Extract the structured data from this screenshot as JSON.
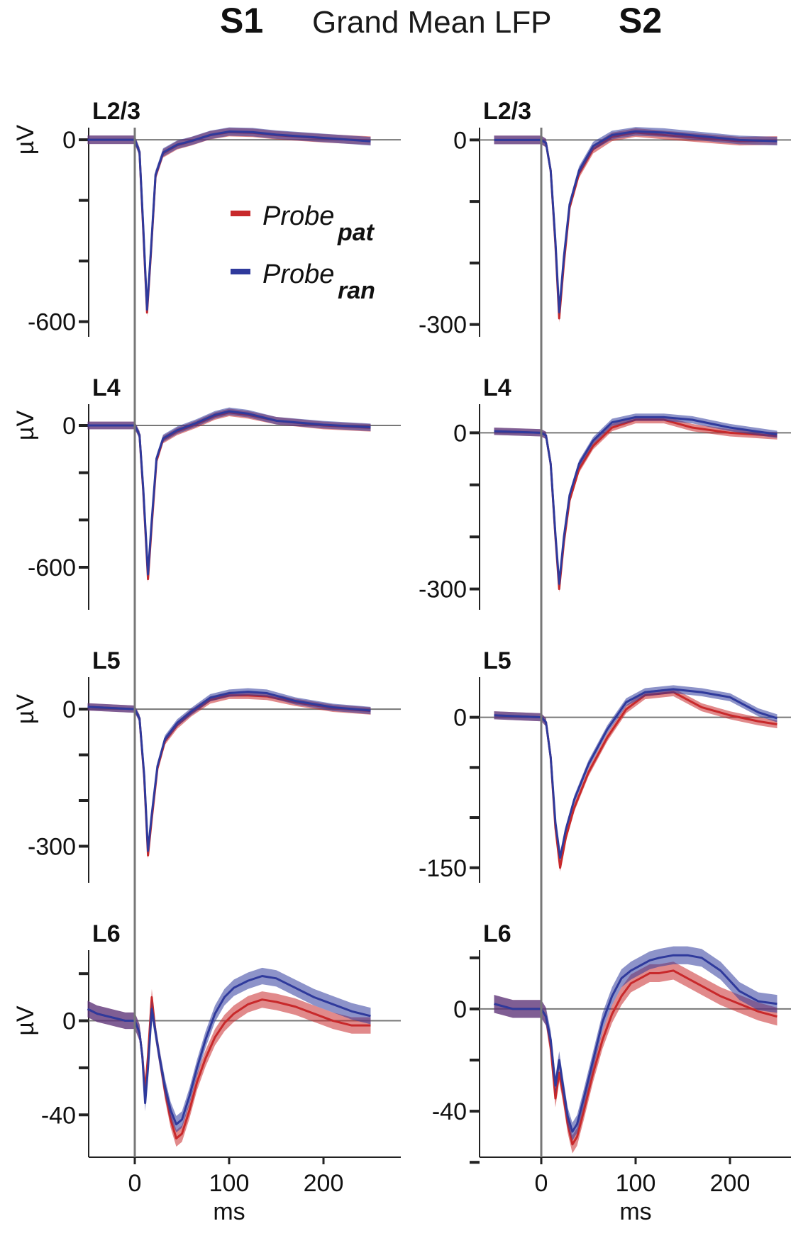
{
  "header": {
    "title": "Grand Mean LFP",
    "col_left": "S1",
    "col_right": "S2"
  },
  "legend": {
    "items": [
      {
        "base": "Probe",
        "sub": "pat",
        "color": "#c8292b"
      },
      {
        "base": "Probe",
        "sub": "ran",
        "color": "#2f3a9c"
      }
    ]
  },
  "colors": {
    "pat": "#c8292b",
    "ran": "#2f3a9c",
    "axis": "#222222",
    "zero": "#777777"
  },
  "chart_data": [
    {
      "type": "line",
      "panel": "S1-L2/3",
      "layer_label": "L2/3",
      "ylabel": "µV",
      "ylim": [
        -650,
        40
      ],
      "yticks": [
        0,
        -200,
        -400,
        -600
      ],
      "ytick_labels": [
        "0",
        "",
        "",
        "-600"
      ],
      "xlim": [
        -65,
        265
      ],
      "series": [
        {
          "name": "Probe pat",
          "band": 14,
          "x": [
            -50,
            0,
            5,
            9,
            13,
            17,
            22,
            30,
            45,
            60,
            80,
            100,
            125,
            150,
            200,
            250
          ],
          "y": [
            0,
            0,
            -40,
            -300,
            -570,
            -380,
            -120,
            -45,
            -18,
            -5,
            15,
            25,
            23,
            15,
            5,
            -3
          ]
        },
        {
          "name": "Probe ran",
          "band": 14,
          "x": [
            -50,
            0,
            5,
            9,
            13,
            17,
            22,
            30,
            45,
            60,
            80,
            100,
            125,
            150,
            200,
            250
          ],
          "y": [
            0,
            0,
            -40,
            -290,
            -560,
            -370,
            -115,
            -42,
            -16,
            -4,
            16,
            27,
            25,
            17,
            6,
            -5
          ]
        }
      ]
    },
    {
      "type": "line",
      "panel": "S2-L2/3",
      "layer_label": "L2/3",
      "ylabel": "",
      "ylim": [
        -320,
        20
      ],
      "yticks": [
        0,
        -100,
        -200,
        -300
      ],
      "ytick_labels": [
        "0",
        "",
        "",
        "-300"
      ],
      "xlim": [
        -65,
        265
      ],
      "series": [
        {
          "name": "Probe pat",
          "band": 7,
          "x": [
            -50,
            0,
            5,
            10,
            15,
            19,
            24,
            30,
            40,
            55,
            75,
            100,
            130,
            170,
            210,
            250
          ],
          "y": [
            0,
            0,
            -5,
            -50,
            -170,
            -290,
            -200,
            -110,
            -55,
            -15,
            5,
            12,
            8,
            3,
            -2,
            -1
          ]
        },
        {
          "name": "Probe ran",
          "band": 7,
          "x": [
            -50,
            0,
            5,
            10,
            15,
            19,
            24,
            30,
            40,
            55,
            75,
            100,
            130,
            170,
            210,
            250
          ],
          "y": [
            0,
            0,
            -5,
            -50,
            -165,
            -280,
            -190,
            -105,
            -50,
            -10,
            8,
            14,
            12,
            6,
            0,
            -2
          ]
        }
      ]
    },
    {
      "type": "line",
      "panel": "S1-L4",
      "layer_label": "L4",
      "ylabel": "µV",
      "ylim": [
        -780,
        90
      ],
      "yticks": [
        0,
        -200,
        -400,
        -600
      ],
      "ytick_labels": [
        "0",
        "",
        "",
        "-600"
      ],
      "xlim": [
        -65,
        265
      ],
      "series": [
        {
          "name": "Probe pat",
          "band": 16,
          "x": [
            -50,
            0,
            5,
            9,
            14,
            18,
            23,
            30,
            45,
            65,
            85,
            100,
            120,
            150,
            200,
            250
          ],
          "y": [
            0,
            0,
            -40,
            -280,
            -650,
            -420,
            -150,
            -60,
            -25,
            5,
            40,
            55,
            45,
            20,
            0,
            -10
          ]
        },
        {
          "name": "Probe ran",
          "band": 16,
          "x": [
            -50,
            0,
            5,
            9,
            14,
            18,
            23,
            30,
            45,
            65,
            85,
            100,
            120,
            150,
            200,
            250
          ],
          "y": [
            0,
            0,
            -40,
            -270,
            -630,
            -400,
            -140,
            -55,
            -20,
            10,
            45,
            60,
            50,
            20,
            3,
            -8
          ]
        }
      ]
    },
    {
      "type": "line",
      "panel": "S2-L4",
      "layer_label": "L4",
      "ylabel": "",
      "ylim": [
        -340,
        55
      ],
      "yticks": [
        0,
        -100,
        -200,
        -300
      ],
      "ytick_labels": [
        "0",
        "",
        "",
        "-300"
      ],
      "xlim": [
        -65,
        265
      ],
      "series": [
        {
          "name": "Probe pat",
          "band": 7,
          "x": [
            -50,
            0,
            5,
            10,
            15,
            19,
            24,
            30,
            40,
            55,
            75,
            100,
            130,
            160,
            200,
            250
          ],
          "y": [
            3,
            0,
            -5,
            -60,
            -200,
            -300,
            -210,
            -130,
            -70,
            -25,
            10,
            25,
            25,
            10,
            0,
            -6
          ]
        },
        {
          "name": "Probe ran",
          "band": 7,
          "x": [
            -50,
            0,
            5,
            10,
            15,
            19,
            24,
            30,
            40,
            55,
            75,
            100,
            130,
            160,
            200,
            250
          ],
          "y": [
            3,
            0,
            -5,
            -60,
            -195,
            -290,
            -200,
            -120,
            -60,
            -15,
            20,
            30,
            30,
            25,
            10,
            -3
          ]
        }
      ]
    },
    {
      "type": "line",
      "panel": "S1-L5",
      "layer_label": "L5",
      "ylabel": "µV",
      "ylim": [
        -380,
        70
      ],
      "yticks": [
        0,
        -100,
        -200,
        -300
      ],
      "ytick_labels": [
        "0",
        "",
        "",
        "-300"
      ],
      "xlim": [
        -65,
        265
      ],
      "series": [
        {
          "name": "Probe pat",
          "band": 8,
          "x": [
            -50,
            0,
            5,
            10,
            14,
            18,
            24,
            32,
            45,
            60,
            80,
            100,
            120,
            140,
            170,
            210,
            250
          ],
          "y": [
            5,
            0,
            -20,
            -150,
            -320,
            -240,
            -130,
            -70,
            -35,
            -8,
            20,
            30,
            30,
            28,
            15,
            2,
            -4
          ]
        },
        {
          "name": "Probe ran",
          "band": 8,
          "x": [
            -50,
            0,
            5,
            10,
            14,
            18,
            24,
            32,
            45,
            60,
            80,
            100,
            120,
            140,
            170,
            210,
            250
          ],
          "y": [
            5,
            0,
            -20,
            -145,
            -310,
            -230,
            -125,
            -65,
            -30,
            -5,
            25,
            35,
            38,
            35,
            18,
            4,
            -3
          ]
        }
      ]
    },
    {
      "type": "line",
      "panel": "S2-L5",
      "layer_label": "L5",
      "ylabel": "",
      "ylim": [
        -165,
        40
      ],
      "yticks": [
        0,
        -50,
        -100,
        -150
      ],
      "ytick_labels": [
        "0",
        "",
        "",
        "-150"
      ],
      "xlim": [
        -65,
        265
      ],
      "series": [
        {
          "name": "Probe pat",
          "band": 4,
          "x": [
            -50,
            0,
            5,
            10,
            15,
            20,
            26,
            35,
            50,
            70,
            90,
            110,
            140,
            170,
            200,
            230,
            250
          ],
          "y": [
            2,
            0,
            -5,
            -40,
            -110,
            -150,
            -120,
            -90,
            -55,
            -20,
            8,
            22,
            25,
            10,
            2,
            -4,
            -7
          ]
        },
        {
          "name": "Probe ran",
          "band": 4,
          "x": [
            -50,
            0,
            5,
            10,
            15,
            20,
            26,
            35,
            50,
            70,
            90,
            110,
            140,
            170,
            200,
            230,
            250
          ],
          "y": [
            2,
            0,
            -5,
            -40,
            -105,
            -140,
            -112,
            -82,
            -47,
            -12,
            15,
            25,
            28,
            25,
            20,
            5,
            -1
          ]
        }
      ]
    },
    {
      "type": "line",
      "panel": "S1-L6",
      "layer_label": "L6",
      "ylabel": "µV",
      "ylim": [
        -58,
        30
      ],
      "yticks": [
        20,
        0,
        -20,
        -40
      ],
      "ytick_labels": [
        "",
        "0",
        "",
        "-40"
      ],
      "xlim": [
        -65,
        265
      ],
      "series": [
        {
          "name": "Probe pat",
          "band": 3.5,
          "x": [
            -50,
            -40,
            -30,
            -20,
            -10,
            0,
            5,
            8,
            11,
            14,
            18,
            22,
            26,
            32,
            38,
            44,
            50,
            58,
            66,
            75,
            85,
            95,
            105,
            120,
            135,
            150,
            170,
            190,
            210,
            230,
            250
          ],
          "y": [
            5,
            3,
            2,
            1,
            0,
            0,
            -5,
            -15,
            -30,
            -15,
            10,
            -5,
            -15,
            -30,
            -42,
            -50,
            -48,
            -38,
            -26,
            -16,
            -7,
            -1,
            3,
            7,
            9,
            8,
            6,
            3,
            0,
            -2,
            -2
          ]
        },
        {
          "name": "Probe ran",
          "band": 3.5,
          "x": [
            -50,
            -40,
            -30,
            -20,
            -10,
            0,
            5,
            8,
            11,
            14,
            18,
            22,
            26,
            32,
            38,
            44,
            50,
            58,
            66,
            75,
            85,
            95,
            105,
            120,
            135,
            150,
            170,
            190,
            210,
            230,
            250
          ],
          "y": [
            5,
            3,
            2,
            1,
            0,
            0,
            -5,
            -15,
            -35,
            -20,
            5,
            -5,
            -15,
            -28,
            -38,
            -44,
            -42,
            -32,
            -20,
            -8,
            3,
            10,
            14,
            17,
            19,
            18,
            14,
            10,
            7,
            4,
            2
          ]
        }
      ]
    },
    {
      "type": "line",
      "panel": "S2-L6",
      "layer_label": "L6",
      "ylabel": "",
      "ylim": [
        -58,
        23
      ],
      "yticks": [
        20,
        0,
        -20,
        -40,
        -60
      ],
      "ytick_labels": [
        "",
        "0",
        "",
        "-40",
        ""
      ],
      "xlim": [
        -65,
        265
      ],
      "series": [
        {
          "name": "Probe pat",
          "band": 3.5,
          "x": [
            -50,
            -40,
            -30,
            -20,
            -10,
            0,
            5,
            10,
            15,
            19,
            23,
            28,
            33,
            38,
            45,
            55,
            65,
            75,
            85,
            95,
            105,
            115,
            125,
            140,
            155,
            170,
            190,
            210,
            230,
            250
          ],
          "y": [
            2,
            1,
            0,
            0,
            0,
            0,
            -3,
            -15,
            -35,
            -25,
            -33,
            -45,
            -53,
            -50,
            -40,
            -25,
            -12,
            -2,
            5,
            10,
            12,
            14,
            14,
            15,
            12,
            9,
            5,
            2,
            -1,
            -3
          ]
        },
        {
          "name": "Probe ran",
          "band": 3.5,
          "x": [
            -50,
            -40,
            -30,
            -20,
            -10,
            0,
            5,
            10,
            15,
            19,
            23,
            28,
            33,
            38,
            45,
            55,
            65,
            75,
            85,
            95,
            105,
            115,
            125,
            140,
            155,
            170,
            190,
            210,
            230,
            250
          ],
          "y": [
            2,
            1,
            0,
            0,
            0,
            0,
            -3,
            -12,
            -30,
            -20,
            -30,
            -42,
            -48,
            -45,
            -35,
            -20,
            -5,
            5,
            12,
            15,
            17,
            19,
            20,
            21,
            21,
            20,
            15,
            7,
            3,
            2
          ]
        }
      ]
    }
  ],
  "x_axis": {
    "label": "ms",
    "ticks": [
      "0",
      "100",
      "200"
    ]
  }
}
